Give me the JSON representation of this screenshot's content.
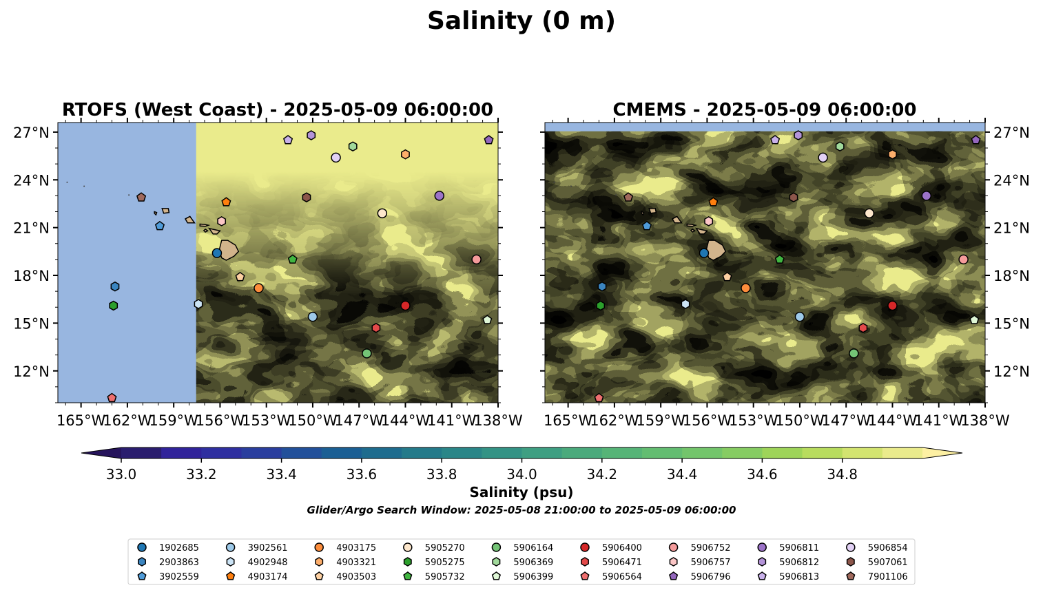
{
  "figure": {
    "suptitle": "Salinity (0 m)",
    "search_window": "Glider/Argo Search Window: 2025-05-08 21:00:00 to 2025-05-09 06:00:00"
  },
  "colors": {
    "land_fill": "#d2b48c",
    "nodata_fill": "#98b6e0",
    "marker_edge": "#000000"
  },
  "chart_data": [
    {
      "type": "heatmap",
      "title": "RTOFS (West Coast) - 2025-05-09 06:00:00",
      "x_range_deg_east": [
        -166.5,
        -138
      ],
      "y_range_deg_north": [
        10,
        27.6
      ],
      "x_ticks": [
        "165°W",
        "162°W",
        "159°W",
        "156°W",
        "153°W",
        "150°W",
        "147°W",
        "144°W",
        "141°W",
        "138°W"
      ],
      "y_ticks": [
        "27°N",
        "24°N",
        "21°N",
        "18°N",
        "15°N",
        "12°N"
      ],
      "y_tick_side": "left",
      "field_notes": "No data (light blue) west of about 157.5°W; values mostly 34.4–34.9 psu east of it",
      "no_data_west_of_lon": -157.55
    },
    {
      "type": "heatmap",
      "title": "CMEMS - 2025-05-09 06:00:00",
      "x_range_deg_east": [
        -166.5,
        -138
      ],
      "y_range_deg_north": [
        10,
        27.6
      ],
      "x_ticks": [
        "165°W",
        "162°W",
        "159°W",
        "156°W",
        "153°W",
        "150°W",
        "147°W",
        "144°W",
        "141°W",
        "138°W"
      ],
      "y_ticks": [
        "27°N",
        "24°N",
        "21°N",
        "18°N",
        "15°N",
        "12°N"
      ],
      "y_tick_side": "right",
      "field_notes": "Salinity about 34.3–34.9 psu with eddy filaments; no-data strip above about 27.1°N",
      "no_data_north_of_lat": 27.05
    },
    {
      "type": "scatter",
      "name": "glider_argo_positions",
      "points": [
        {
          "id": "1902685",
          "lon": -156.2,
          "lat": 19.4
        },
        {
          "id": "2903863",
          "lon": -162.8,
          "lat": 17.3
        },
        {
          "id": "3902559",
          "lon": -159.9,
          "lat": 21.1
        },
        {
          "id": "3902561",
          "lon": -150.0,
          "lat": 15.4
        },
        {
          "id": "4902948",
          "lon": -157.4,
          "lat": 16.2
        },
        {
          "id": "4903174",
          "lon": -155.6,
          "lat": 22.6
        },
        {
          "id": "4903175",
          "lon": -153.5,
          "lat": 17.2
        },
        {
          "id": "4903321",
          "lon": -144.0,
          "lat": 25.6
        },
        {
          "id": "4903503",
          "lon": -154.7,
          "lat": 17.9
        },
        {
          "id": "5905270",
          "lon": -145.5,
          "lat": 21.9
        },
        {
          "id": "5905275",
          "lon": -162.9,
          "lat": 16.1
        },
        {
          "id": "5905732",
          "lon": -151.3,
          "lat": 19.0
        },
        {
          "id": "5906164",
          "lon": -146.5,
          "lat": 13.1
        },
        {
          "id": "5906369",
          "lon": -147.4,
          "lat": 26.1
        },
        {
          "id": "5906399",
          "lon": -138.7,
          "lat": 15.2
        },
        {
          "id": "5906400",
          "lon": -144.0,
          "lat": 16.1
        },
        {
          "id": "5906471",
          "lon": -145.9,
          "lat": 14.7
        },
        {
          "id": "5906564",
          "lon": -163.0,
          "lat": 10.3
        },
        {
          "id": "5906752",
          "lon": -139.4,
          "lat": 19.0
        },
        {
          "id": "5906757",
          "lon": -155.9,
          "lat": 21.4
        },
        {
          "id": "5906796",
          "lon": -138.6,
          "lat": 26.5
        },
        {
          "id": "5906811",
          "lon": -141.8,
          "lat": 23.0
        },
        {
          "id": "5906812",
          "lon": -150.1,
          "lat": 26.8
        },
        {
          "id": "5906813",
          "lon": -151.6,
          "lat": 26.5
        },
        {
          "id": "5906854",
          "lon": -148.5,
          "lat": 25.4
        },
        {
          "id": "5907061",
          "lon": -150.4,
          "lat": 22.9
        },
        {
          "id": "7901106",
          "lon": -161.1,
          "lat": 22.9
        }
      ]
    }
  ],
  "colorbar": {
    "label": "Salinity (psu)",
    "ticks": [
      "33.0",
      "33.2",
      "33.4",
      "33.6",
      "33.8",
      "34.0",
      "34.2",
      "34.4",
      "34.6",
      "34.8"
    ],
    "levels": [
      33.0,
      33.1,
      33.2,
      33.3,
      33.4,
      33.5,
      33.6,
      33.7,
      33.8,
      33.9,
      34.0,
      34.1,
      34.2,
      34.3,
      34.4,
      34.5,
      34.6,
      34.7,
      34.8,
      34.9
    ],
    "colors": [
      "#2a1d6e",
      "#31239a",
      "#2f2fa0",
      "#2a3e9e",
      "#22509a",
      "#1b5f94",
      "#1e6c8e",
      "#247a8a",
      "#2a8688",
      "#339385",
      "#3e9f82",
      "#4aaa7c",
      "#56b477",
      "#63bd71",
      "#73c56b",
      "#86cc62",
      "#9ed459",
      "#b8dc5e",
      "#d3e470",
      "#eaeb8c"
    ],
    "under_color": "#26145c",
    "over_color": "#fdf0a3",
    "extend": "both"
  },
  "legend": {
    "columns": [
      [
        {
          "label": "1902685",
          "marker": "circle",
          "color": "#1f77b4"
        },
        {
          "label": "2903863",
          "marker": "hexagon",
          "color": "#3b85c0"
        },
        {
          "label": "3902559",
          "marker": "pentagon",
          "color": "#4f9bd8"
        }
      ],
      [
        {
          "label": "3902561",
          "marker": "circle",
          "color": "#9ecae9"
        },
        {
          "label": "4902948",
          "marker": "hexagon",
          "color": "#cce4f6"
        },
        {
          "label": "4903174",
          "marker": "pentagon",
          "color": "#ff7f0e"
        }
      ],
      [
        {
          "label": "4903175",
          "marker": "circle",
          "color": "#fd8d3c"
        },
        {
          "label": "4903321",
          "marker": "hexagon",
          "color": "#fdae6b"
        },
        {
          "label": "4903503",
          "marker": "pentagon",
          "color": "#fdd0a2"
        }
      ],
      [
        {
          "label": "5905270",
          "marker": "circle",
          "color": "#fde7cc"
        },
        {
          "label": "5905275",
          "marker": "hexagon",
          "color": "#2ca02c"
        },
        {
          "label": "5905732",
          "marker": "pentagon",
          "color": "#41b641"
        }
      ],
      [
        {
          "label": "5906164",
          "marker": "circle",
          "color": "#74c476"
        },
        {
          "label": "5906369",
          "marker": "hexagon",
          "color": "#a1d99b"
        },
        {
          "label": "5906399",
          "marker": "pentagon",
          "color": "#dff7d6"
        }
      ],
      [
        {
          "label": "5906400",
          "marker": "circle",
          "color": "#d62728"
        },
        {
          "label": "5906471",
          "marker": "hexagon",
          "color": "#e34a4a"
        },
        {
          "label": "5906564",
          "marker": "pentagon",
          "color": "#ee6f6f"
        }
      ],
      [
        {
          "label": "5906752",
          "marker": "circle",
          "color": "#f59b9b"
        },
        {
          "label": "5906757",
          "marker": "hexagon",
          "color": "#fbc6c6"
        },
        {
          "label": "5906796",
          "marker": "pentagon",
          "color": "#9467bd"
        }
      ],
      [
        {
          "label": "5906811",
          "marker": "circle",
          "color": "#9c73c8"
        },
        {
          "label": "5906812",
          "marker": "hexagon",
          "color": "#b494d9"
        },
        {
          "label": "5906813",
          "marker": "pentagon",
          "color": "#c9b1ea"
        }
      ],
      [
        {
          "label": "5906854",
          "marker": "circle",
          "color": "#e2d1f5"
        },
        {
          "label": "5907061",
          "marker": "hexagon",
          "color": "#8c564b"
        },
        {
          "label": "7901106",
          "marker": "pentagon",
          "color": "#a0695c"
        }
      ]
    ]
  }
}
